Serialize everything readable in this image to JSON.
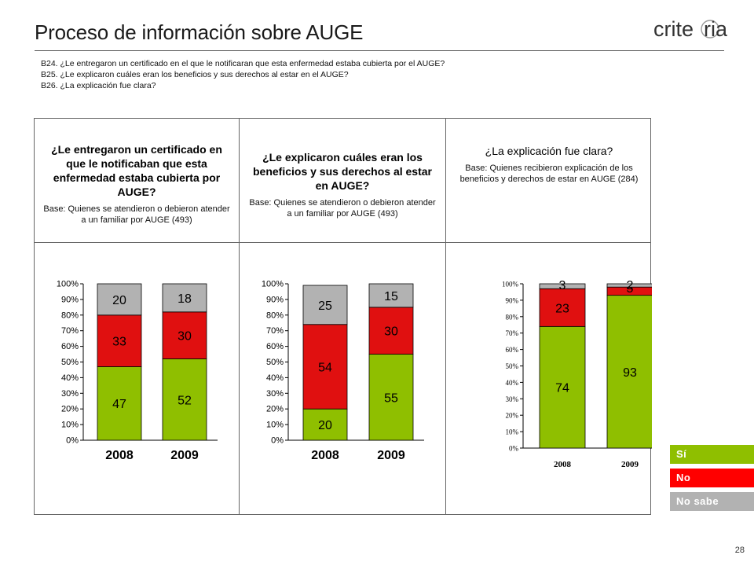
{
  "title": "Proceso de información sobre AUGE",
  "logo": "criteria",
  "questions": [
    "B24. ¿Le entregaron un certificado en el que le notificaran que esta enfermedad estaba cubierta por el AUGE?",
    "B25. ¿Le explicaron cuáles eran los beneficios y sus derechos al estar en el AUGE?",
    "B26. ¿La explicación fue clara?"
  ],
  "panels": [
    {
      "question": "¿Le entregaron un certificado en que le notificaban que esta enfermedad estaba cubierta por AUGE?",
      "base": "Base: Quienes se atendieron o debieron atender a un  familiar por AUGE (493)"
    },
    {
      "question": "¿Le explicaron cuáles eran los beneficios y sus derechos al estar en AUGE?",
      "base": "Base: Quienes se atendieron o debieron atender a un  familiar por AUGE (493)"
    },
    {
      "question": "¿La explicación fue clara?",
      "base": "Base: Quienes recibieron explicación de los beneficios y derechos de estar en AUGE (284)"
    }
  ],
  "legend": [
    {
      "label": "Sí",
      "color": "#8fbf00"
    },
    {
      "label": "No",
      "color": "#ff0000"
    },
    {
      "label": "No sabe",
      "color": "#b2b2b2"
    }
  ],
  "colors": {
    "si": "#8fbf00",
    "no": "#e01010",
    "nosabe": "#b2b2b2"
  },
  "page_number": "28",
  "chart_data": [
    {
      "type": "bar",
      "stacked": true,
      "categories": [
        "2008",
        "2009"
      ],
      "yticks": [
        "0%",
        "10%",
        "20%",
        "30%",
        "40%",
        "50%",
        "60%",
        "70%",
        "80%",
        "90%",
        "100%"
      ],
      "ylim": [
        0,
        100
      ],
      "series": [
        {
          "name": "Sí",
          "values": [
            47,
            52
          ]
        },
        {
          "name": "No",
          "values": [
            33,
            30
          ]
        },
        {
          "name": "No sabe",
          "values": [
            20,
            18
          ]
        }
      ]
    },
    {
      "type": "bar",
      "stacked": true,
      "categories": [
        "2008",
        "2009"
      ],
      "yticks": [
        "0%",
        "10%",
        "20%",
        "30%",
        "40%",
        "50%",
        "60%",
        "70%",
        "80%",
        "90%",
        "100%"
      ],
      "ylim": [
        0,
        100
      ],
      "series": [
        {
          "name": "Sí",
          "values": [
            20,
            55
          ]
        },
        {
          "name": "No",
          "values": [
            54,
            30
          ]
        },
        {
          "name": "No sabe",
          "values": [
            25,
            15
          ]
        }
      ]
    },
    {
      "type": "bar",
      "stacked": true,
      "categories": [
        "2008",
        "2009"
      ],
      "yticks": [
        "0%",
        "10%",
        "20%",
        "30%",
        "40%",
        "50%",
        "60%",
        "70%",
        "80%",
        "90%",
        "100%"
      ],
      "ylim": [
        0,
        100
      ],
      "series": [
        {
          "name": "Sí",
          "values": [
            74,
            93
          ]
        },
        {
          "name": "No",
          "values": [
            23,
            5
          ]
        },
        {
          "name": "No sabe",
          "values": [
            3,
            2
          ]
        }
      ]
    }
  ]
}
